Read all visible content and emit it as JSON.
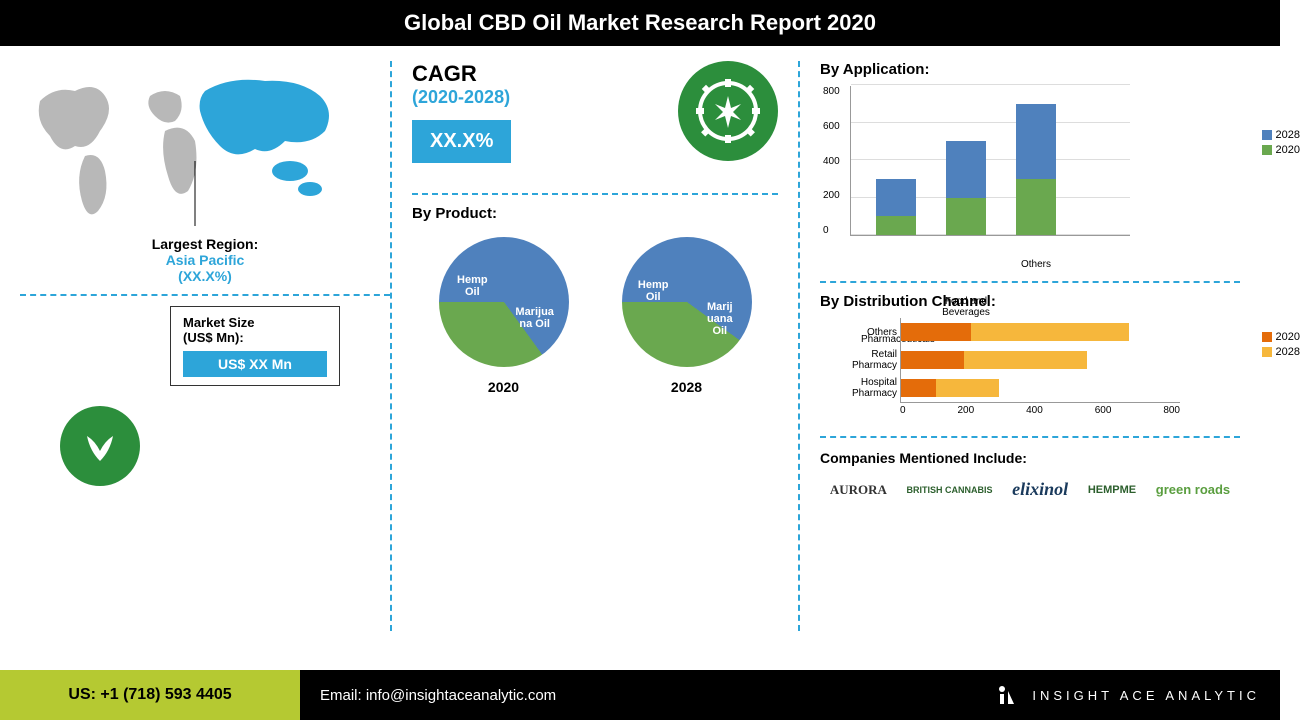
{
  "header": {
    "title": "Global CBD Oil Market Research Report 2020"
  },
  "map": {
    "region_label": "Largest Region:",
    "region_name": "Asia Pacific",
    "region_share": "(XX.X%)",
    "highlight_color": "#2da5d9",
    "base_color": "#b8b8b8"
  },
  "market_size": {
    "label": "Market Size\n(US$ Mn):",
    "value": "US$ XX Mn",
    "bg_color": "#2da5d9"
  },
  "cagr": {
    "title": "CAGR",
    "years": "(2020-2028)",
    "value": "XX.X%",
    "bg_color": "#2da5d9"
  },
  "by_product": {
    "title": "By Product:",
    "pies": [
      {
        "year": "2020",
        "slices": [
          {
            "label": "Marijua\nna Oil",
            "value": 65,
            "color": "#4f81bd"
          },
          {
            "label": "Hemp\nOil",
            "value": 35,
            "color": "#6aa84f"
          }
        ]
      },
      {
        "year": "2028",
        "slices": [
          {
            "label": "Marij\nuana\nOil",
            "value": 60,
            "color": "#4f81bd"
          },
          {
            "label": "Hemp\nOil",
            "value": 40,
            "color": "#6aa84f"
          }
        ]
      }
    ]
  },
  "by_application": {
    "title": "By Application:",
    "type": "stacked_bar",
    "ylim": [
      0,
      800
    ],
    "ytick_step": 200,
    "categories": [
      "Pharmaceuticals",
      "Food and\nBeverages",
      "Others"
    ],
    "series": [
      {
        "name": "2020",
        "color": "#6aa84f",
        "values": [
          100,
          200,
          300
        ]
      },
      {
        "name": "2028",
        "color": "#4f81bd",
        "values": [
          200,
          300,
          400
        ]
      }
    ],
    "grid_color": "#e0e0e0"
  },
  "by_distribution": {
    "title": "By Distribution Channel:",
    "type": "stacked_hbar",
    "xlim": [
      0,
      800
    ],
    "xtick_step": 200,
    "categories": [
      "Others",
      "Retail\nPharmacy",
      "Hospital\nPharmacy"
    ],
    "series": [
      {
        "name": "2020",
        "color": "#e46c0a",
        "values": [
          200,
          180,
          100
        ]
      },
      {
        "name": "2028",
        "color": "#f6b73c",
        "values": [
          450,
          350,
          180
        ]
      }
    ]
  },
  "companies": {
    "title": "Companies Mentioned Include:",
    "list": [
      "AURORA",
      "BRITISH CANNABIS",
      "elixinol",
      "HEMPME",
      "green roads"
    ]
  },
  "footer": {
    "phone": "US: +1 (718) 593 4405",
    "email": "Email: info@insightaceanalytic.com",
    "brand": "INSIGHT ACE ANALYTIC"
  },
  "colors": {
    "green": "#2c8e3c",
    "blue": "#2da5d9",
    "black": "#000000"
  }
}
